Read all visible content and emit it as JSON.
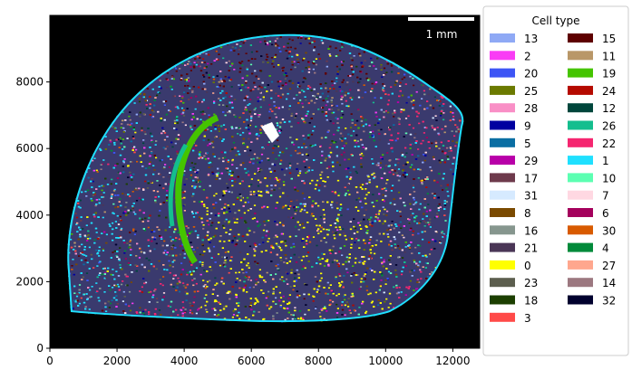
{
  "chart_data": {
    "type": "scatter",
    "title": "",
    "xlabel": "",
    "ylabel": "",
    "xlim": [
      0,
      12800
    ],
    "ylim": [
      0,
      10000
    ],
    "x_ticks": [
      0,
      2000,
      4000,
      6000,
      8000,
      10000,
      12000
    ],
    "y_ticks": [
      0,
      2000,
      4000,
      6000,
      8000
    ],
    "background": "#000000",
    "grid": false,
    "legend": {
      "title": "Cell type",
      "placement": "outside-right",
      "columns": 2,
      "entries": [
        {
          "label": "13",
          "color": "#8fa9f5"
        },
        {
          "label": "2",
          "color": "#f93cf5"
        },
        {
          "label": "20",
          "color": "#3d55f5"
        },
        {
          "label": "25",
          "color": "#6b7a00"
        },
        {
          "label": "28",
          "color": "#f98fc6"
        },
        {
          "label": "9",
          "color": "#0000a0"
        },
        {
          "label": "5",
          "color": "#0a6ea3"
        },
        {
          "label": "29",
          "color": "#b800a8"
        },
        {
          "label": "17",
          "color": "#6e3a4c"
        },
        {
          "label": "31",
          "color": "#d6eaff"
        },
        {
          "label": "8",
          "color": "#7a4a00"
        },
        {
          "label": "16",
          "color": "#86968e"
        },
        {
          "label": "21",
          "color": "#4a3656"
        },
        {
          "label": "0",
          "color": "#ffff00"
        },
        {
          "label": "23",
          "color": "#5c5e4e"
        },
        {
          "label": "18",
          "color": "#1c3f00"
        },
        {
          "label": "3",
          "color": "#ff4a48"
        },
        {
          "label": "15",
          "color": "#5e0000"
        },
        {
          "label": "11",
          "color": "#b99768"
        },
        {
          "label": "19",
          "color": "#45c400"
        },
        {
          "label": "24",
          "color": "#b50a00"
        },
        {
          "label": "12",
          "color": "#00463c"
        },
        {
          "label": "26",
          "color": "#14be8e"
        },
        {
          "label": "22",
          "color": "#f52670"
        },
        {
          "label": "1",
          "color": "#1fe0ff"
        },
        {
          "label": "10",
          "color": "#5cffb2"
        },
        {
          "label": "7",
          "color": "#ffd8e2"
        },
        {
          "label": "6",
          "color": "#a4005c"
        },
        {
          "label": "30",
          "color": "#d85a00"
        },
        {
          "label": "4",
          "color": "#008a3a"
        },
        {
          "label": "27",
          "color": "#ffa78e"
        },
        {
          "label": "14",
          "color": "#9c7880"
        },
        {
          "label": "32",
          "color": "#00002e"
        }
      ]
    },
    "scale_bar": {
      "label": "1 mm",
      "length": 2000,
      "color": "#ffffff",
      "placement": "top-right"
    }
  }
}
